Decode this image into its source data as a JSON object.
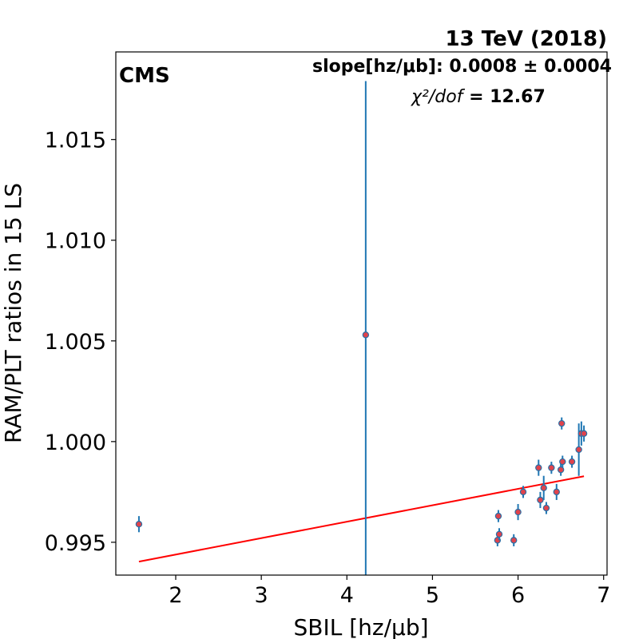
{
  "chart_data": {
    "type": "scatter",
    "title": "13 TeV (2018)",
    "experiment_label": "CMS",
    "fit_text": {
      "slope": "slope[hz/μb]: 0.0008 ± 0.0004",
      "chi2_symbol": "χ²/dof",
      "chi2_value": " = 12.67"
    },
    "xlabel": "SBIL [hz/μb]",
    "ylabel": "RAM/PLT ratios in 15 LS",
    "xlim": [
      1.3,
      7.04
    ],
    "ylim": [
      0.99337,
      1.01935
    ],
    "xticks": [
      2,
      3,
      4,
      5,
      6,
      7
    ],
    "xtick_labels": [
      "2",
      "3",
      "4",
      "5",
      "6",
      "7"
    ],
    "yticks": [
      0.995,
      1.0,
      1.005,
      1.01,
      1.015
    ],
    "ytick_labels": [
      "0.995",
      "1.000",
      "1.005",
      "1.010",
      "1.015"
    ],
    "points": [
      {
        "x": 1.57,
        "y": 0.9959,
        "err": 0.0004
      },
      {
        "x": 4.22,
        "y": 1.0053,
        "err": 0.0126
      },
      {
        "x": 5.76,
        "y": 0.9951,
        "err": 0.0003
      },
      {
        "x": 5.77,
        "y": 0.9963,
        "err": 0.0003
      },
      {
        "x": 5.78,
        "y": 0.9954,
        "err": 0.0003
      },
      {
        "x": 5.95,
        "y": 0.9951,
        "err": 0.0003
      },
      {
        "x": 6.0,
        "y": 0.9965,
        "err": 0.0004
      },
      {
        "x": 6.06,
        "y": 0.9975,
        "err": 0.0003
      },
      {
        "x": 6.24,
        "y": 0.9987,
        "err": 0.0004
      },
      {
        "x": 6.26,
        "y": 0.9971,
        "err": 0.0004
      },
      {
        "x": 6.3,
        "y": 0.9977,
        "err": 0.0006
      },
      {
        "x": 6.33,
        "y": 0.9967,
        "err": 0.0003
      },
      {
        "x": 6.39,
        "y": 0.9987,
        "err": 0.0003
      },
      {
        "x": 6.45,
        "y": 0.9975,
        "err": 0.0004
      },
      {
        "x": 6.5,
        "y": 0.9986,
        "err": 0.0003
      },
      {
        "x": 6.51,
        "y": 1.0009,
        "err": 0.0003
      },
      {
        "x": 6.52,
        "y": 0.999,
        "err": 0.0003
      },
      {
        "x": 6.63,
        "y": 0.999,
        "err": 0.0003
      },
      {
        "x": 6.71,
        "y": 0.9996,
        "err": 0.0013
      },
      {
        "x": 6.74,
        "y": 1.0004,
        "err": 0.0006
      },
      {
        "x": 6.77,
        "y": 1.0004,
        "err": 0.0004
      }
    ],
    "fit_line": {
      "x": [
        1.57,
        6.77
      ],
      "y": [
        0.99404,
        0.99828
      ]
    },
    "colors": {
      "marker_face": "#e0434c",
      "marker_edge": "#2b6fa5",
      "errorbar": "#1f77b4",
      "fit_line": "#ff0000",
      "axes": "#000000"
    }
  }
}
